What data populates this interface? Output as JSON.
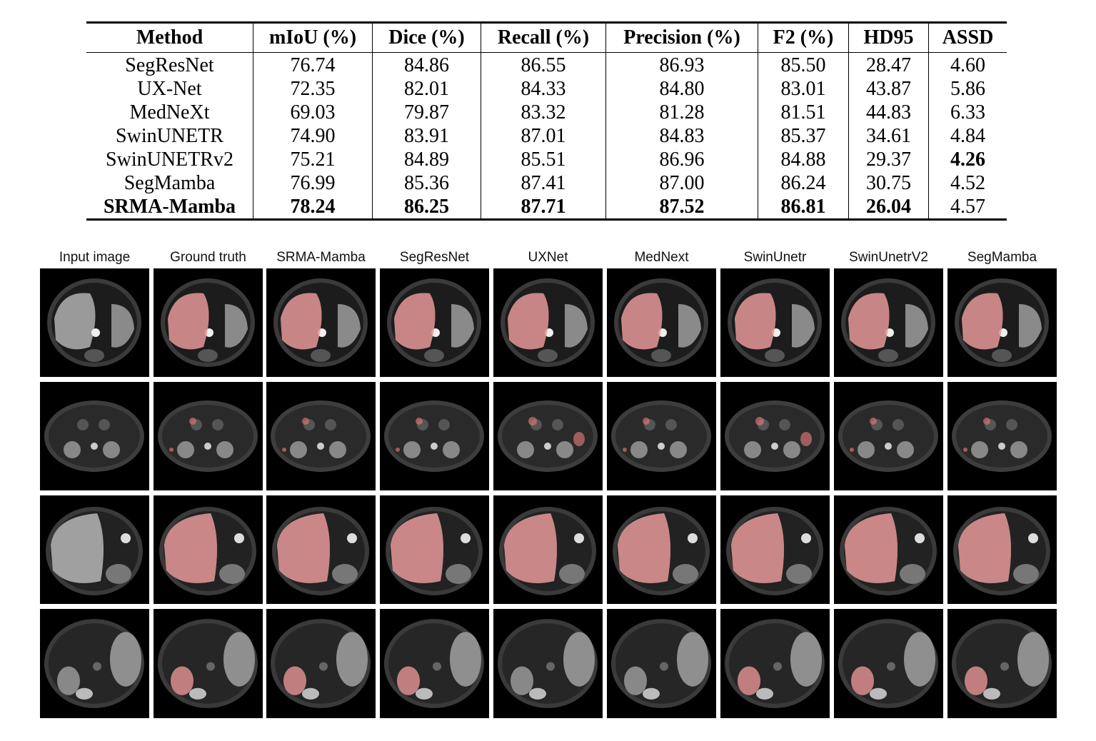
{
  "table": {
    "headers": [
      "Method",
      "mIoU (%)",
      "Dice (%)",
      "Recall (%)",
      "Precision (%)",
      "F2 (%)",
      "HD95",
      "ASSD"
    ],
    "rows": [
      {
        "method": "SegResNet",
        "values": [
          "76.74",
          "84.86",
          "86.55",
          "86.93",
          "85.50",
          "28.47",
          "4.60"
        ],
        "bold": [
          false,
          false,
          false,
          false,
          false,
          false,
          false
        ],
        "method_bold": false
      },
      {
        "method": "UX-Net",
        "values": [
          "72.35",
          "82.01",
          "84.33",
          "84.80",
          "83.01",
          "43.87",
          "5.86"
        ],
        "bold": [
          false,
          false,
          false,
          false,
          false,
          false,
          false
        ],
        "method_bold": false
      },
      {
        "method": "MedNeXt",
        "values": [
          "69.03",
          "79.87",
          "83.32",
          "81.28",
          "81.51",
          "44.83",
          "6.33"
        ],
        "bold": [
          false,
          false,
          false,
          false,
          false,
          false,
          false
        ],
        "method_bold": false
      },
      {
        "method": "SwinUNETR",
        "values": [
          "74.90",
          "83.91",
          "87.01",
          "84.83",
          "85.37",
          "34.61",
          "4.84"
        ],
        "bold": [
          false,
          false,
          false,
          false,
          false,
          false,
          false
        ],
        "method_bold": false
      },
      {
        "method": "SwinUNETRv2",
        "values": [
          "75.21",
          "84.89",
          "85.51",
          "86.96",
          "84.88",
          "29.37",
          "4.26"
        ],
        "bold": [
          false,
          false,
          false,
          false,
          false,
          false,
          true
        ],
        "method_bold": false
      },
      {
        "method": "SegMamba",
        "values": [
          "76.99",
          "85.36",
          "87.41",
          "87.00",
          "86.24",
          "30.75",
          "4.52"
        ],
        "bold": [
          false,
          false,
          false,
          false,
          false,
          false,
          false
        ],
        "method_bold": false
      },
      {
        "method": "SRMA-Mamba",
        "values": [
          "78.24",
          "86.25",
          "87.71",
          "87.52",
          "86.81",
          "26.04",
          "4.57"
        ],
        "bold": [
          true,
          true,
          true,
          true,
          true,
          true,
          false
        ],
        "method_bold": true
      }
    ]
  },
  "figure": {
    "columns": [
      "Input image",
      "Ground truth",
      "SRMA-Mamba",
      "SegResNet",
      "UXNet",
      "MedNext",
      "SwinUnetr",
      "SwinUnetrV2",
      "SegMamba"
    ],
    "rows": [
      {
        "anatomy": "upper-abdomen-liver-slice"
      },
      {
        "anatomy": "kidney-level-slice"
      },
      {
        "anatomy": "mid-liver-slice"
      },
      {
        "anatomy": "lower-liver-slice"
      }
    ],
    "overlay_color": "#e07a7a"
  }
}
